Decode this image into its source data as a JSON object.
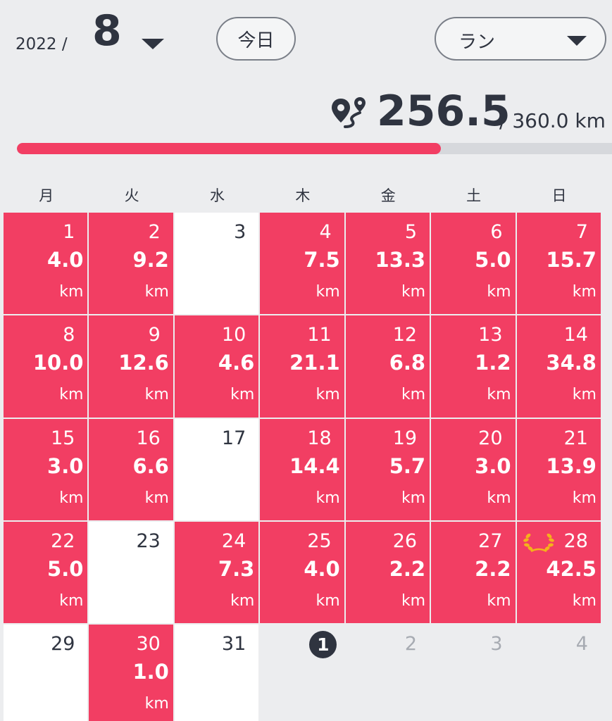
{
  "header": {
    "year_label": "2022 /",
    "month_label": "8",
    "today_button": "今日",
    "sport_selected": "ラン"
  },
  "summary": {
    "total": "256.5",
    "goal": "/ 360.0  km",
    "progress_fraction": 0.7125,
    "accent_color": "#f23e63"
  },
  "weekdays": [
    "月",
    "火",
    "水",
    "木",
    "金",
    "土",
    "日"
  ],
  "unit": "km",
  "calendar": [
    {
      "day": "1",
      "distance": "4.0"
    },
    {
      "day": "2",
      "distance": "9.2"
    },
    {
      "day": "3",
      "distance": null
    },
    {
      "day": "4",
      "distance": "7.5"
    },
    {
      "day": "5",
      "distance": "13.3"
    },
    {
      "day": "6",
      "distance": "5.0"
    },
    {
      "day": "7",
      "distance": "15.7"
    },
    {
      "day": "8",
      "distance": "10.0"
    },
    {
      "day": "9",
      "distance": "12.6"
    },
    {
      "day": "10",
      "distance": "4.6"
    },
    {
      "day": "11",
      "distance": "21.1"
    },
    {
      "day": "12",
      "distance": "6.8"
    },
    {
      "day": "13",
      "distance": "1.2"
    },
    {
      "day": "14",
      "distance": "34.8"
    },
    {
      "day": "15",
      "distance": "3.0"
    },
    {
      "day": "16",
      "distance": "6.6"
    },
    {
      "day": "17",
      "distance": null
    },
    {
      "day": "18",
      "distance": "14.4"
    },
    {
      "day": "19",
      "distance": "5.7"
    },
    {
      "day": "20",
      "distance": "3.0"
    },
    {
      "day": "21",
      "distance": "13.9"
    },
    {
      "day": "22",
      "distance": "5.0"
    },
    {
      "day": "23",
      "distance": null
    },
    {
      "day": "24",
      "distance": "7.3"
    },
    {
      "day": "25",
      "distance": "4.0"
    },
    {
      "day": "26",
      "distance": "2.2"
    },
    {
      "day": "27",
      "distance": "2.2"
    },
    {
      "day": "28",
      "distance": "42.5",
      "badge": "laurel-icon"
    },
    {
      "day": "29",
      "distance": null
    },
    {
      "day": "30",
      "distance": "1.0"
    },
    {
      "day": "31",
      "distance": null
    },
    {
      "day": "1",
      "distance": null,
      "other_month": true,
      "today": true
    },
    {
      "day": "2",
      "distance": null,
      "other_month": true
    },
    {
      "day": "3",
      "distance": null,
      "other_month": true
    },
    {
      "day": "4",
      "distance": null,
      "other_month": true
    }
  ]
}
